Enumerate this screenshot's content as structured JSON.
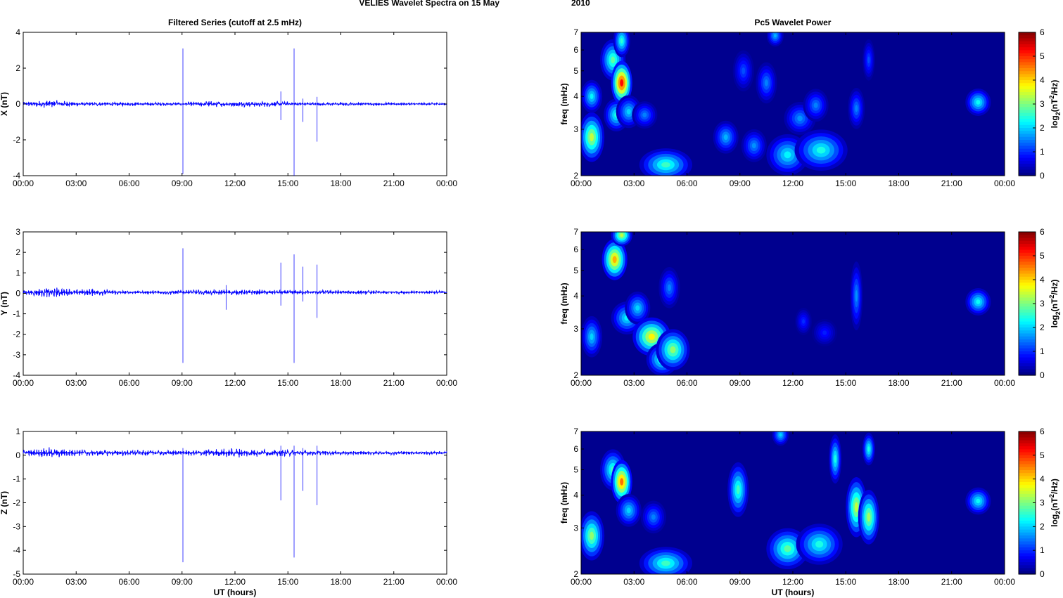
{
  "figure": {
    "title": "VELIES Wavelet Spectra on 15 May",
    "year": "2010"
  },
  "colors": {
    "trace": "#0000ff",
    "spectrogram_bg": "#00008f",
    "axis": "#000000"
  },
  "chart_data": [
    {
      "type": "line",
      "title": "Filtered Series (cutoff at 2.5 mHz)",
      "xlabel": "",
      "ylabel": "X (nT)",
      "x_ticks": [
        "00:00",
        "03:00",
        "06:00",
        "09:00",
        "12:00",
        "15:00",
        "18:00",
        "21:00",
        "00:00"
      ],
      "xlim_hours": [
        0,
        24
      ],
      "ylim": [
        -4,
        4
      ],
      "y_ticks": [
        "4",
        "2",
        "0",
        "-2",
        "-4"
      ],
      "y_tick_values": [
        4,
        2,
        0,
        -2,
        -4
      ],
      "baseline": 0,
      "noise_profile": [
        [
          0,
          0.12
        ],
        [
          1.5,
          0.25
        ],
        [
          3,
          0.12
        ],
        [
          9,
          0.1
        ],
        [
          10.5,
          0.18
        ],
        [
          14.5,
          0.15
        ],
        [
          16,
          0.1
        ],
        [
          24,
          0.08
        ]
      ],
      "spikes": [
        {
          "t": 9.05,
          "min": -3.9,
          "max": 3.1
        },
        {
          "t": 14.6,
          "min": -0.9,
          "max": 0.7
        },
        {
          "t": 15.35,
          "min": -4.0,
          "max": 3.1
        },
        {
          "t": 15.85,
          "min": -1.0,
          "max": 0.3
        },
        {
          "t": 16.65,
          "min": -2.1,
          "max": 0.4
        }
      ]
    },
    {
      "type": "line",
      "title": "",
      "xlabel": "",
      "ylabel": "Y (nT)",
      "x_ticks": [
        "00:00",
        "03:00",
        "06:00",
        "09:00",
        "12:00",
        "15:00",
        "18:00",
        "21:00",
        "00:00"
      ],
      "xlim_hours": [
        0,
        24
      ],
      "ylim": [
        -4,
        3
      ],
      "y_ticks": [
        "3",
        "2",
        "1",
        "0",
        "-1",
        "-2",
        "-3",
        "-4"
      ],
      "y_tick_values": [
        3,
        2,
        1,
        0,
        -1,
        -2,
        -3,
        -4
      ],
      "baseline": 0.05,
      "noise_profile": [
        [
          0,
          0.1
        ],
        [
          1.5,
          0.3
        ],
        [
          3,
          0.15
        ],
        [
          4,
          0.2
        ],
        [
          5,
          0.15
        ],
        [
          6,
          0.08
        ],
        [
          11,
          0.15
        ],
        [
          14,
          0.12
        ],
        [
          24,
          0.08
        ]
      ],
      "spikes": [
        {
          "t": 9.05,
          "min": -3.4,
          "max": 2.2
        },
        {
          "t": 11.5,
          "min": -0.8,
          "max": 0.4
        },
        {
          "t": 14.6,
          "min": -0.6,
          "max": 1.5
        },
        {
          "t": 15.35,
          "min": -3.4,
          "max": 1.9
        },
        {
          "t": 15.85,
          "min": -0.4,
          "max": 1.3
        },
        {
          "t": 16.65,
          "min": -1.2,
          "max": 1.4
        }
      ]
    },
    {
      "type": "line",
      "title": "",
      "xlabel": "UT (hours)",
      "ylabel": "Z (nT)",
      "x_ticks": [
        "00:00",
        "03:00",
        "06:00",
        "09:00",
        "12:00",
        "15:00",
        "18:00",
        "21:00",
        "00:00"
      ],
      "xlim_hours": [
        0,
        24
      ],
      "ylim": [
        -5,
        1
      ],
      "y_ticks": [
        "1",
        "0",
        "-1",
        "-2",
        "-3",
        "-4",
        "-5"
      ],
      "y_tick_values": [
        1,
        0,
        -1,
        -2,
        -3,
        -4,
        -5
      ],
      "baseline": 0.1,
      "noise_profile": [
        [
          0,
          0.12
        ],
        [
          1.5,
          0.25
        ],
        [
          3,
          0.15
        ],
        [
          9,
          0.12
        ],
        [
          12,
          0.2
        ],
        [
          15,
          0.15
        ],
        [
          17,
          0.1
        ],
        [
          24,
          0.08
        ]
      ],
      "spikes": [
        {
          "t": 9.05,
          "min": -4.5,
          "max": 0.3
        },
        {
          "t": 14.6,
          "min": -1.9,
          "max": 0.4
        },
        {
          "t": 15.35,
          "min": -4.3,
          "max": 0.4
        },
        {
          "t": 15.85,
          "min": -1.5,
          "max": 0.3
        },
        {
          "t": 16.65,
          "min": -2.1,
          "max": 0.4
        }
      ]
    },
    {
      "type": "heatmap",
      "title": "Pc5 Wavelet Power",
      "xlabel": "",
      "ylabel": "freq (mHz)",
      "x_ticks": [
        "00:00",
        "03:00",
        "06:00",
        "09:00",
        "12:00",
        "15:00",
        "18:00",
        "21:00",
        "00:00"
      ],
      "xlim_hours": [
        0,
        24
      ],
      "y_scale": "log",
      "ylim_mHz": [
        2,
        7
      ],
      "y_ticks": [
        "7",
        "6",
        "5",
        "4",
        "3",
        "2"
      ],
      "y_tick_values": [
        7,
        6,
        5,
        4,
        3,
        2
      ],
      "colorbar": {
        "label": "log2(nT^2/Hz)",
        "range": [
          0,
          6
        ],
        "ticks": [
          "6",
          "5",
          "4",
          "3",
          "2",
          "1",
          "0"
        ]
      },
      "blobs": [
        {
          "t": 0.6,
          "f": 2.8,
          "p": 3.4,
          "dt": 0.12,
          "df": 0.18
        },
        {
          "t": 0.6,
          "f": 4.0,
          "p": 2.2,
          "dt": 0.1,
          "df": 0.12
        },
        {
          "t": 1.8,
          "f": 5.5,
          "p": 2.8,
          "dt": 0.12,
          "df": 0.15
        },
        {
          "t": 2.0,
          "f": 3.4,
          "p": 2.4,
          "dt": 0.12,
          "df": 0.12
        },
        {
          "t": 2.3,
          "f": 4.5,
          "p": 5.2,
          "dt": 0.1,
          "df": 0.16
        },
        {
          "t": 2.3,
          "f": 6.5,
          "p": 2.5,
          "dt": 0.08,
          "df": 0.12
        },
        {
          "t": 2.7,
          "f": 3.5,
          "p": 2.0,
          "dt": 0.12,
          "df": 0.12
        },
        {
          "t": 3.6,
          "f": 3.4,
          "p": 1.5,
          "dt": 0.12,
          "df": 0.1
        },
        {
          "t": 4.8,
          "f": 2.2,
          "p": 2.6,
          "dt": 0.25,
          "df": 0.12
        },
        {
          "t": 8.2,
          "f": 2.8,
          "p": 1.8,
          "dt": 0.12,
          "df": 0.12
        },
        {
          "t": 9.2,
          "f": 5.0,
          "p": 1.2,
          "dt": 0.1,
          "df": 0.15
        },
        {
          "t": 9.8,
          "f": 2.6,
          "p": 1.6,
          "dt": 0.12,
          "df": 0.12
        },
        {
          "t": 10.5,
          "f": 4.5,
          "p": 1.5,
          "dt": 0.1,
          "df": 0.15
        },
        {
          "t": 11.0,
          "f": 6.8,
          "p": 1.8,
          "dt": 0.08,
          "df": 0.08
        },
        {
          "t": 11.7,
          "f": 2.4,
          "p": 2.2,
          "dt": 0.2,
          "df": 0.15
        },
        {
          "t": 12.4,
          "f": 3.3,
          "p": 1.6,
          "dt": 0.15,
          "df": 0.12
        },
        {
          "t": 13.6,
          "f": 2.5,
          "p": 2.4,
          "dt": 0.25,
          "df": 0.15
        },
        {
          "t": 13.3,
          "f": 3.7,
          "p": 1.5,
          "dt": 0.12,
          "df": 0.12
        },
        {
          "t": 15.6,
          "f": 3.6,
          "p": 1.5,
          "dt": 0.08,
          "df": 0.15
        },
        {
          "t": 16.3,
          "f": 5.5,
          "p": 1.2,
          "dt": 0.06,
          "df": 0.15
        },
        {
          "t": 22.5,
          "f": 3.8,
          "p": 2.3,
          "dt": 0.12,
          "df": 0.1
        }
      ]
    },
    {
      "type": "heatmap",
      "title": "",
      "xlabel": "",
      "ylabel": "freq (mHz)",
      "x_ticks": [
        "00:00",
        "03:00",
        "06:00",
        "09:00",
        "12:00",
        "15:00",
        "18:00",
        "21:00",
        "00:00"
      ],
      "xlim_hours": [
        0,
        24
      ],
      "y_scale": "log",
      "ylim_mHz": [
        2,
        7
      ],
      "y_ticks": [
        "7",
        "6",
        "5",
        "4",
        "3",
        "2"
      ],
      "y_tick_values": [
        7,
        6,
        5,
        4,
        3,
        2
      ],
      "colorbar": {
        "label": "log2(nT^2/Hz)",
        "range": [
          0,
          6
        ],
        "ticks": [
          "6",
          "5",
          "4",
          "3",
          "2",
          "1",
          "0"
        ]
      },
      "blobs": [
        {
          "t": 0.6,
          "f": 2.8,
          "p": 2.0,
          "dt": 0.1,
          "df": 0.15
        },
        {
          "t": 1.9,
          "f": 5.5,
          "p": 4.2,
          "dt": 0.12,
          "df": 0.15
        },
        {
          "t": 2.3,
          "f": 6.8,
          "p": 3.4,
          "dt": 0.1,
          "df": 0.08
        },
        {
          "t": 2.6,
          "f": 3.3,
          "p": 2.2,
          "dt": 0.15,
          "df": 0.12
        },
        {
          "t": 3.2,
          "f": 3.6,
          "p": 2.0,
          "dt": 0.12,
          "df": 0.12
        },
        {
          "t": 4.0,
          "f": 2.8,
          "p": 3.8,
          "dt": 0.18,
          "df": 0.14
        },
        {
          "t": 4.6,
          "f": 2.3,
          "p": 2.6,
          "dt": 0.15,
          "df": 0.12
        },
        {
          "t": 5.2,
          "f": 2.5,
          "p": 3.1,
          "dt": 0.16,
          "df": 0.15
        },
        {
          "t": 5.0,
          "f": 4.3,
          "p": 1.5,
          "dt": 0.1,
          "df": 0.15
        },
        {
          "t": 12.6,
          "f": 3.2,
          "p": 1.0,
          "dt": 0.08,
          "df": 0.1
        },
        {
          "t": 13.8,
          "f": 2.9,
          "p": 0.9,
          "dt": 0.12,
          "df": 0.1
        },
        {
          "t": 15.6,
          "f": 4.0,
          "p": 1.6,
          "dt": 0.06,
          "df": 0.25
        },
        {
          "t": 22.5,
          "f": 3.8,
          "p": 2.3,
          "dt": 0.12,
          "df": 0.1
        }
      ]
    },
    {
      "type": "heatmap",
      "title": "",
      "xlabel": "UT (hours)",
      "ylabel": "freq (mHz)",
      "x_ticks": [
        "00:00",
        "03:00",
        "06:00",
        "09:00",
        "12:00",
        "15:00",
        "18:00",
        "21:00",
        "00:00"
      ],
      "xlim_hours": [
        0,
        24
      ],
      "y_scale": "log",
      "ylim_mHz": [
        2,
        7
      ],
      "y_ticks": [
        "7",
        "6",
        "5",
        "4",
        "3",
        "2"
      ],
      "y_tick_values": [
        7,
        6,
        5,
        4,
        3,
        2
      ],
      "colorbar": {
        "label": "log2(nT^2/Hz)",
        "range": [
          0,
          6
        ],
        "ticks": [
          "6",
          "5",
          "4",
          "3",
          "2",
          "1",
          "0"
        ]
      },
      "blobs": [
        {
          "t": 0.6,
          "f": 2.8,
          "p": 3.1,
          "dt": 0.12,
          "df": 0.18
        },
        {
          "t": 1.8,
          "f": 5.0,
          "p": 2.6,
          "dt": 0.12,
          "df": 0.15
        },
        {
          "t": 2.3,
          "f": 4.5,
          "p": 4.6,
          "dt": 0.1,
          "df": 0.16
        },
        {
          "t": 2.7,
          "f": 3.5,
          "p": 2.0,
          "dt": 0.12,
          "df": 0.12
        },
        {
          "t": 4.8,
          "f": 2.2,
          "p": 2.6,
          "dt": 0.25,
          "df": 0.12
        },
        {
          "t": 4.1,
          "f": 3.3,
          "p": 1.5,
          "dt": 0.12,
          "df": 0.12
        },
        {
          "t": 8.9,
          "f": 4.2,
          "p": 2.6,
          "dt": 0.1,
          "df": 0.2
        },
        {
          "t": 11.7,
          "f": 2.5,
          "p": 2.8,
          "dt": 0.2,
          "df": 0.15
        },
        {
          "t": 11.3,
          "f": 6.8,
          "p": 2.0,
          "dt": 0.08,
          "df": 0.08
        },
        {
          "t": 13.5,
          "f": 2.6,
          "p": 2.4,
          "dt": 0.22,
          "df": 0.15
        },
        {
          "t": 14.4,
          "f": 5.5,
          "p": 2.4,
          "dt": 0.06,
          "df": 0.18
        },
        {
          "t": 15.6,
          "f": 3.6,
          "p": 3.4,
          "dt": 0.1,
          "df": 0.22
        },
        {
          "t": 16.3,
          "f": 3.3,
          "p": 3.2,
          "dt": 0.1,
          "df": 0.2
        },
        {
          "t": 16.3,
          "f": 6.0,
          "p": 2.4,
          "dt": 0.06,
          "df": 0.12
        },
        {
          "t": 22.5,
          "f": 3.8,
          "p": 2.3,
          "dt": 0.12,
          "df": 0.1
        }
      ]
    }
  ]
}
